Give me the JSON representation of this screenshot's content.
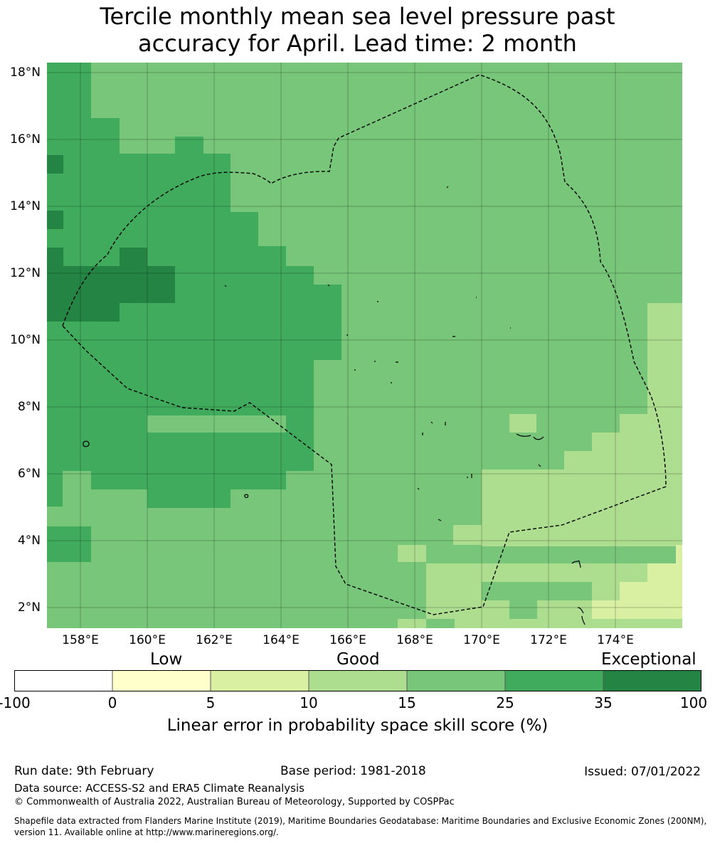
{
  "title": {
    "line1": "Tercile monthly mean sea level pressure past",
    "line2": "accuracy for April. Lead time: 2 month"
  },
  "map": {
    "lat_range": [
      1.4,
      18.3
    ],
    "lon_range": [
      157.0,
      176.0
    ],
    "lat_ticks": [
      "18°N",
      "16°N",
      "14°N",
      "12°N",
      "10°N",
      "8°N",
      "6°N",
      "4°N",
      "2°N"
    ],
    "lon_ticks": [
      "158°E",
      "160°E",
      "162°E",
      "164°E",
      "166°E",
      "168°E",
      "170°E",
      "172°E",
      "174°E"
    ],
    "colors": {
      "c25": "#78c679",
      "c35": "#41ab5d",
      "c100": "#238443",
      "c15": "#addd8e",
      "c10": "#d9f0a3",
      "boundary": "#000000"
    }
  },
  "legend": {
    "categories": [
      "Low",
      "Good",
      "Exceptional"
    ],
    "ticks": [
      "-100",
      "0",
      "5",
      "10",
      "15",
      "25",
      "35",
      "100"
    ],
    "colors": [
      "#ffffff",
      "#ffffcc",
      "#d9f0a3",
      "#addd8e",
      "#78c679",
      "#41ab5d",
      "#238443"
    ],
    "label": "Linear error in probability space skill score (%)"
  },
  "footer": {
    "run_date": "Run date: 9th February",
    "base_period": "Base period: 1981-2018",
    "issued": "Issued: 07/01/2022",
    "data_source": "Data source: ACCESS-S2 and ERA5 Climate Reanalysis",
    "copyright": "© Commonwealth of Australia 2022, Australian Bureau of Meteorology, Supported by COSPPac",
    "shapefile_line1": "Shapefile data extracted from Flanders Marine Institute (2019), Maritime Boundaries Geodatabase: Maritime Boundaries and Exclusive Economic Zones (200NM),",
    "shapefile_line2": "version 11. Available online at http://www.marineregions.org/."
  }
}
